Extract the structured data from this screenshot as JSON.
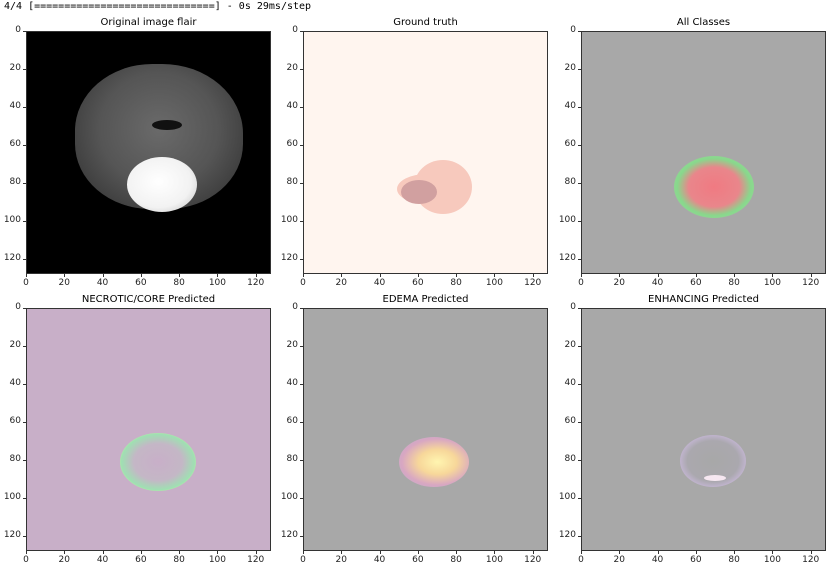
{
  "console": {
    "progress_text": "4/4 [==============================] - 0s 29ms/step"
  },
  "panels": [
    {
      "title": "Original image flair"
    },
    {
      "title": "Ground truth"
    },
    {
      "title": "All Classes"
    },
    {
      "title": "NECROTIC/CORE Predicted"
    },
    {
      "title": "EDEMA Predicted"
    },
    {
      "title": "ENHANCING Predicted"
    }
  ],
  "chart_data": {
    "type": "heatmap",
    "title": "",
    "subplots": [
      {
        "title": "Original image flair",
        "xlim": [
          0,
          128
        ],
        "ylim": [
          128,
          0
        ]
      },
      {
        "title": "Ground truth",
        "xlim": [
          0,
          128
        ],
        "ylim": [
          128,
          0
        ]
      },
      {
        "title": "All Classes",
        "xlim": [
          0,
          128
        ],
        "ylim": [
          128,
          0
        ]
      },
      {
        "title": "NECROTIC/CORE Predicted",
        "xlim": [
          0,
          128
        ],
        "ylim": [
          128,
          0
        ]
      },
      {
        "title": "EDEMA Predicted",
        "xlim": [
          0,
          128
        ],
        "ylim": [
          128,
          0
        ]
      },
      {
        "title": "ENHANCING Predicted",
        "xlim": [
          0,
          128
        ],
        "ylim": [
          128,
          0
        ]
      }
    ],
    "xticks": [
      "0",
      "20",
      "40",
      "60",
      "80",
      "100",
      "120"
    ],
    "yticks": [
      "0",
      "20",
      "40",
      "60",
      "80",
      "100",
      "120"
    ]
  }
}
